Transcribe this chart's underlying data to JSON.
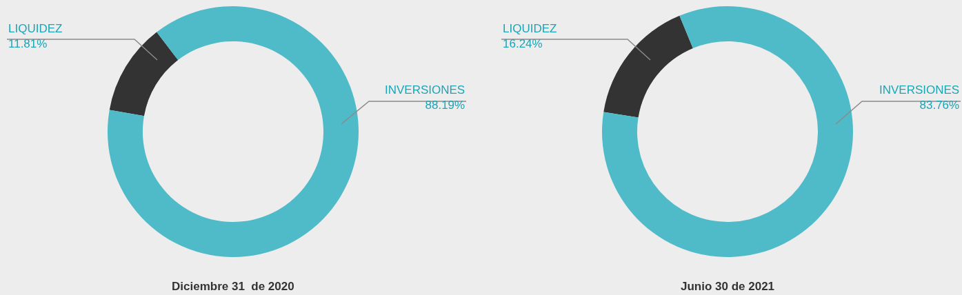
{
  "chart_data": [
    {
      "type": "donut",
      "title": "Diciembre 31  de 2020",
      "categories": [
        "LIQUIDEZ",
        "INVERSIONES"
      ],
      "values": [
        11.81,
        88.19
      ],
      "colors": [
        "#333333",
        "#4fbbc8"
      ],
      "value_labels": [
        "11.81%",
        "88.19%"
      ]
    },
    {
      "type": "donut",
      "title": "Junio 30 de 2021",
      "categories": [
        "LIQUIDEZ",
        "INVERSIONES"
      ],
      "values": [
        16.24,
        83.76
      ],
      "colors": [
        "#333333",
        "#4fbbc8"
      ],
      "value_labels": [
        "16.24%",
        "83.76%"
      ]
    }
  ]
}
